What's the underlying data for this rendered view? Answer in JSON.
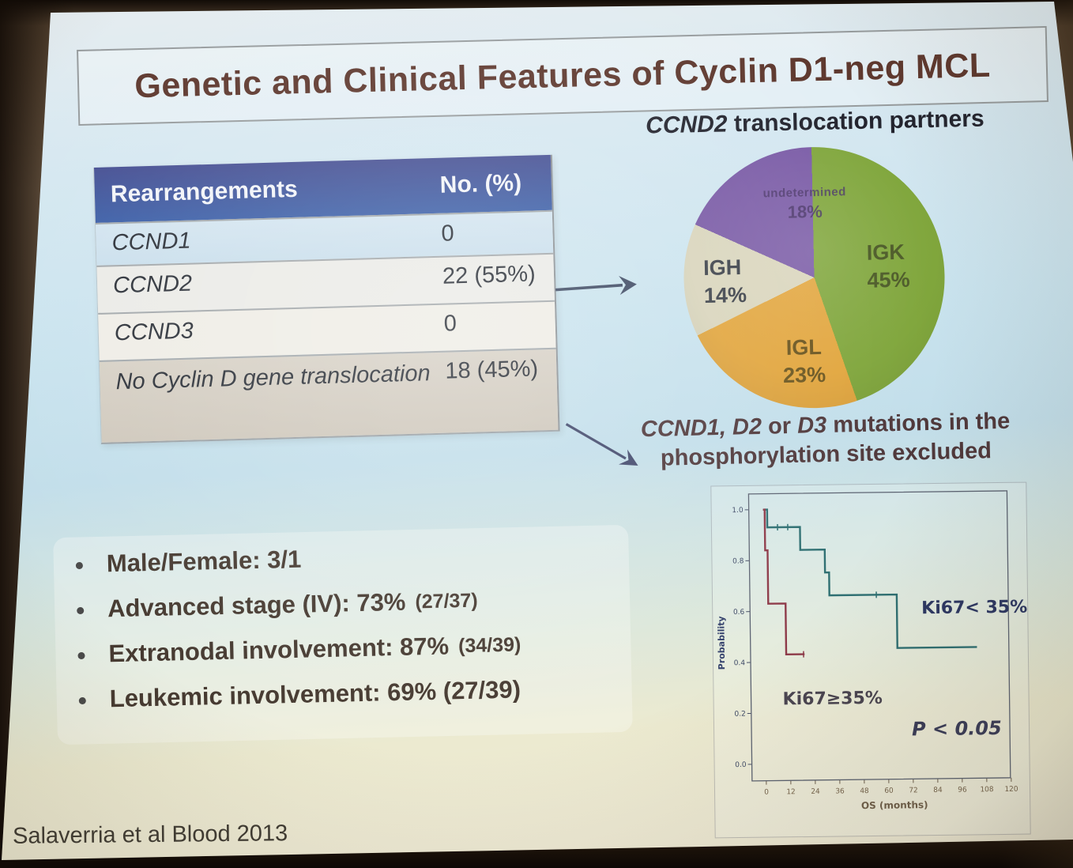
{
  "slide": {
    "title": "Genetic and Clinical Features of Cyclin D1-neg MCL",
    "citation": "Salaverria et al Blood 2013"
  },
  "table": {
    "headers": [
      "Rearrangements",
      "No. (%)"
    ],
    "rows": [
      {
        "gene": "CCND1",
        "value": "0"
      },
      {
        "gene": "CCND2",
        "value": "22 (55%)"
      },
      {
        "gene": "CCND3",
        "value": "0"
      },
      {
        "gene": "No Cyclin D gene translocation",
        "value": "18 (45%)"
      }
    ]
  },
  "note": {
    "seg1": "CCND1, D2",
    "seg2": " or ",
    "seg3": "D3",
    "seg4": " mutations in the",
    "line2": "phosphorylation site excluded"
  },
  "bullets": [
    {
      "label": "Male/Female: 3/1",
      "detail": ""
    },
    {
      "label": "Advanced stage (IV): 73%",
      "detail": "(27/37)"
    },
    {
      "label": "Extranodal involvement: 87%",
      "detail": "(34/39)"
    },
    {
      "label": "Leukemic involvement: 69% (27/39)",
      "detail": ""
    }
  ],
  "chart_data": [
    {
      "type": "pie",
      "title": "CCND2 translocation partners",
      "title_parts": {
        "italic": "CCND2",
        "rest": " translocation partners"
      },
      "slices": [
        {
          "label": "IGK",
          "value": 45,
          "pct_label": "45%",
          "color": "#80a63c"
        },
        {
          "label": "IGL",
          "value": 23,
          "pct_label": "23%",
          "color": "#e2a63e"
        },
        {
          "label": "IGH",
          "value": 14,
          "pct_label": "14%",
          "color": "#d9d5bc"
        },
        {
          "label": "undetermined",
          "value": 18,
          "pct_label": "18%",
          "color": "#7a5ba6"
        }
      ],
      "legend_position": "inside"
    },
    {
      "type": "line",
      "subtype": "kaplan-meier-step",
      "xlabel": "OS (months)",
      "ylabel": "Probability",
      "xlim": [
        0,
        120
      ],
      "ylim": [
        0.0,
        1.0
      ],
      "x_ticks": [
        0,
        12,
        24,
        36,
        48,
        60,
        72,
        84,
        96,
        108,
        120
      ],
      "y_ticks": [
        "1.0",
        "0.8",
        "0.6",
        "0.4",
        "0.2",
        "0.0"
      ],
      "annotation": "P < 0.05",
      "grid": false,
      "series": [
        {
          "name": "Ki67< 35%",
          "color": "#2e6f72",
          "steps": [
            [
              0,
              1.0
            ],
            [
              2,
              0.93
            ],
            [
              18,
              0.84
            ],
            [
              30,
              0.75
            ],
            [
              32,
              0.66
            ],
            [
              65,
              0.45
            ]
          ],
          "end_x": 104,
          "censors": [
            7,
            12,
            55
          ]
        },
        {
          "name": "Ki67≥35%",
          "color": "#8e3a49",
          "steps": [
            [
              0,
              1.0
            ],
            [
              0.8,
              0.84
            ],
            [
              2,
              0.63
            ],
            [
              10.5,
              0.43
            ]
          ],
          "end_x": 19.5,
          "censors": [
            19
          ]
        }
      ]
    }
  ]
}
